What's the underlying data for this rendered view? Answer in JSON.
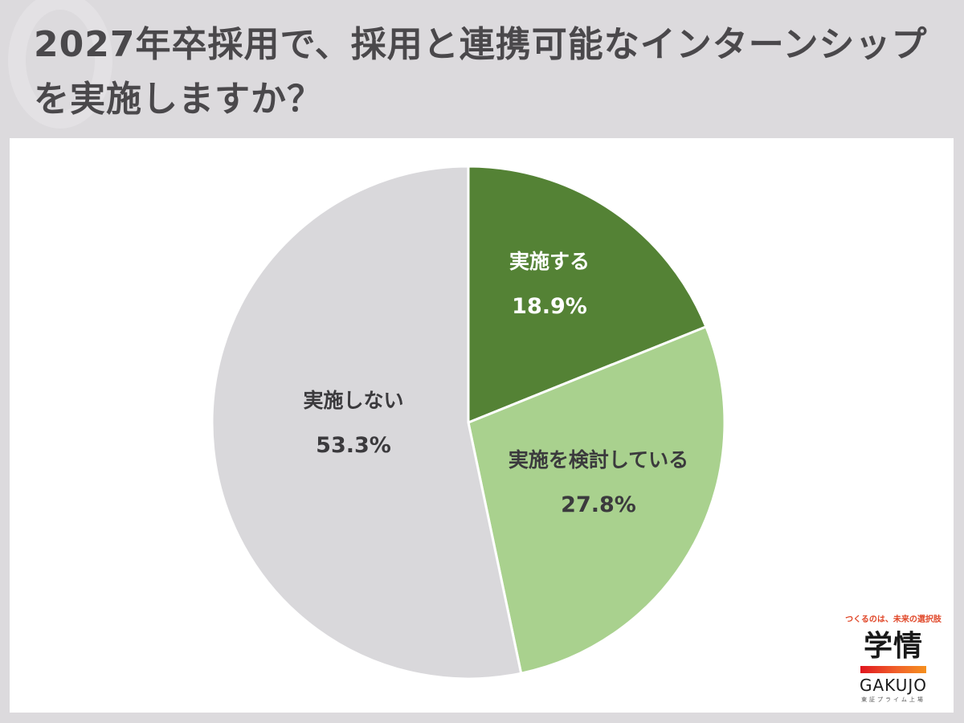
{
  "header": {
    "title": "2027年卒採用で、採用と連携可能なインターンシップを実施しますか？"
  },
  "chart_data": {
    "type": "pie",
    "title": "2027年卒採用で、採用と連携可能なインターンシップを実施しますか？",
    "categories": [
      "実施する",
      "実施を検討している",
      "実施しない"
    ],
    "values": [
      18.9,
      27.8,
      53.3
    ],
    "unit": "%",
    "colors": [
      "#548235",
      "#a9d18e",
      "#d9d8db"
    ],
    "start_angle": "12 o'clock",
    "direction": "clockwise",
    "legend": "none (labels inside slices)"
  },
  "labels": [
    {
      "name": "実施する",
      "pct": "18.9%"
    },
    {
      "name": "実施を検討している",
      "pct": "27.8%"
    },
    {
      "name": "実施しない",
      "pct": "53.3%"
    }
  ],
  "logo": {
    "tagline": "つくるのは、未来の選択肢",
    "kanji": "学情",
    "en": "GAKUJO",
    "sub": "東証プライム上場"
  }
}
